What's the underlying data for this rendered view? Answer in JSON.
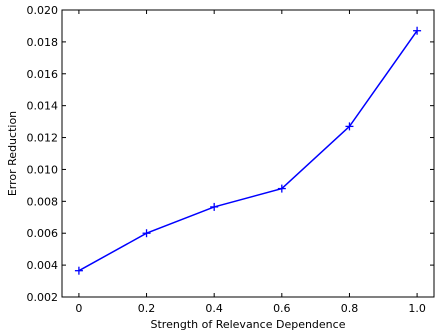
{
  "chart_data": {
    "type": "line",
    "title": "",
    "xlabel": "Strength of Relevance Dependence",
    "ylabel": "Error Reduction",
    "x": [
      0,
      0.2,
      0.4,
      0.6,
      0.8,
      1.0
    ],
    "series": [
      {
        "values": [
          0.00365,
          0.006,
          0.00765,
          0.0088,
          0.0127,
          0.0187
        ]
      }
    ],
    "xlim": [
      -0.05,
      1.05
    ],
    "ylim": [
      0.002,
      0.02
    ],
    "xticks": [
      "0",
      "0.2",
      "0.4",
      "0.6",
      "0.8",
      "1.0"
    ],
    "yticks": [
      "0.002",
      "0.004",
      "0.006",
      "0.008",
      "0.010",
      "0.012",
      "0.014",
      "0.016",
      "0.018",
      "0.020"
    ],
    "grid": false,
    "marker": "plus",
    "line_color": "#0000ff",
    "axis_color": "#000000"
  }
}
